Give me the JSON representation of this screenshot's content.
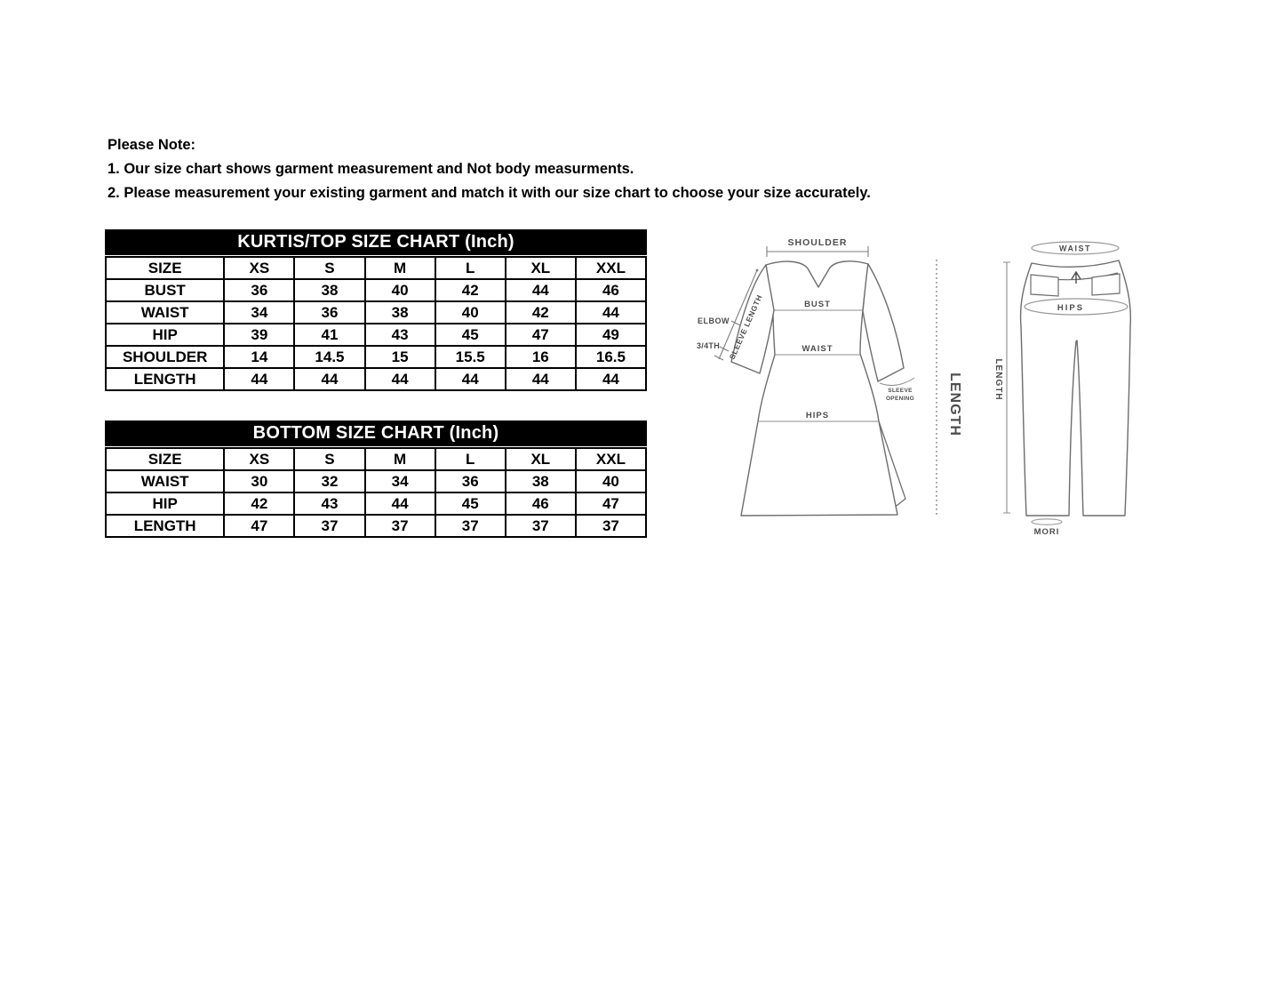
{
  "note": {
    "heading": "Please Note:",
    "lines": [
      "1. Our size chart shows garment measurement and Not body measurments.",
      "2. Please measurement your existing garment and match it with our size chart to choose your size accurately."
    ]
  },
  "tables": [
    {
      "title": "KURTIS/TOP SIZE CHART (Inch)",
      "header": [
        "SIZE",
        "XS",
        "S",
        "M",
        "L",
        "XL",
        "XXL"
      ],
      "rows": [
        [
          "BUST",
          "36",
          "38",
          "40",
          "42",
          "44",
          "46"
        ],
        [
          "WAIST",
          "34",
          "36",
          "38",
          "40",
          "42",
          "44"
        ],
        [
          "HIP",
          "39",
          "41",
          "43",
          "45",
          "47",
          "49"
        ],
        [
          "SHOULDER",
          "14",
          "14.5",
          "15",
          "15.5",
          "16",
          "16.5"
        ],
        [
          "LENGTH",
          "44",
          "44",
          "44",
          "44",
          "44",
          "44"
        ]
      ]
    },
    {
      "title": "BOTTOM SIZE CHART (Inch)",
      "header": [
        "SIZE",
        "XS",
        "S",
        "M",
        "L",
        "XL",
        "XXL"
      ],
      "rows": [
        [
          "WAIST",
          "30",
          "32",
          "34",
          "36",
          "38",
          "40"
        ],
        [
          "HIP",
          "42",
          "43",
          "44",
          "45",
          "46",
          "47"
        ],
        [
          "LENGTH",
          "47",
          "37",
          "37",
          "37",
          "37",
          "37"
        ]
      ]
    }
  ],
  "kurti_diagram": {
    "shoulder_label": "SHOULDER",
    "bust_label": "BUST",
    "waist_label": "WAIST",
    "hips_label": "HIPS",
    "elbow_label": "ELBOW",
    "three_fourth_label": "3/4TH",
    "sleeve_length_label": "SLEEVE LENGTH",
    "sleeve_opening_line1": "SLEEVE",
    "sleeve_opening_line2": "OPENING",
    "length_label": "LENGTH"
  },
  "pants_diagram": {
    "waist_label": "WAIST",
    "hips_label": "HIPS",
    "length_label": "LENGTH",
    "mori_label": "MORI"
  },
  "colors": {
    "table_header_bg": "#000000",
    "table_header_text": "#ffffff",
    "table_border": "#000000",
    "note_text": "#000000",
    "diagram_outline": "#6d6d6d",
    "diagram_guide": "#8c8c8c",
    "diagram_text": "#4d4d4d"
  }
}
